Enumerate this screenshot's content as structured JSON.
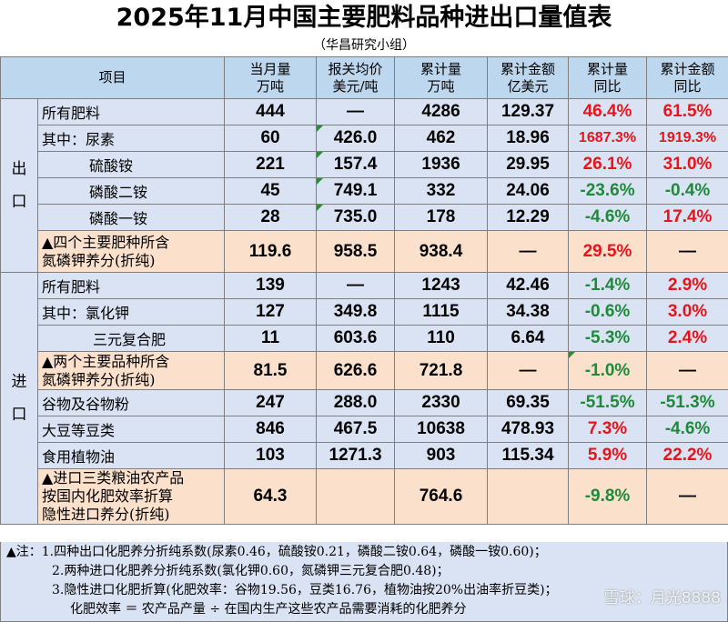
{
  "title": "2025年11月中国主要肥料品种进出口量值表",
  "subtitle": "（华昌研究小组）",
  "headers": {
    "item": "项目",
    "month_qty": [
      "当月量",
      "万吨"
    ],
    "price": [
      "报关均价",
      "美元/吨"
    ],
    "cum_qty": [
      "累计量",
      "万吨"
    ],
    "cum_amt": [
      "累计金额",
      "亿美元"
    ],
    "qty_yoy": [
      "累计量",
      "同比"
    ],
    "amt_yoy": [
      "累计金额",
      "同比"
    ]
  },
  "export": {
    "side": "出口",
    "rows": [
      {
        "label": "所有肥料",
        "month": "444",
        "price": "—",
        "cum": "4286",
        "amt": "129.37",
        "qyoy": "46.4%",
        "ayoy": "61.5%"
      },
      {
        "label": "其中：尿素",
        "month": "60",
        "price": "426.0",
        "cum": "462",
        "amt": "18.96",
        "qyoy": "1687.3%",
        "ayoy": "1919.3%"
      },
      {
        "label": "硫酸铵",
        "month": "221",
        "price": "157.4",
        "cum": "1936",
        "amt": "29.95",
        "qyoy": "26.1%",
        "ayoy": "31.0%"
      },
      {
        "label": "磷酸二铵",
        "month": "45",
        "price": "749.1",
        "cum": "332",
        "amt": "24.06",
        "qyoy": "-23.6%",
        "ayoy": "-0.4%"
      },
      {
        "label": "磷酸一铵",
        "month": "28",
        "price": "735.0",
        "cum": "178",
        "amt": "12.29",
        "qyoy": "-4.6%",
        "ayoy": "17.4%"
      }
    ],
    "summary": {
      "label1": "▲四个主要肥种所含",
      "label2": "氮磷钾养分(折纯)",
      "month": "119.6",
      "price": "958.5",
      "cum": "938.4",
      "amt": "—",
      "qyoy": "29.5%",
      "ayoy": "—"
    }
  },
  "import": {
    "side": "进口",
    "rows": [
      {
        "label": "所有肥料",
        "month": "139",
        "price": "—",
        "cum": "1243",
        "amt": "42.46",
        "qyoy": "-1.4%",
        "ayoy": "2.9%"
      },
      {
        "label": "其中：氯化钾",
        "month": "127",
        "price": "349.8",
        "cum": "1115",
        "amt": "34.38",
        "qyoy": "-0.6%",
        "ayoy": "3.0%"
      },
      {
        "label": "三元复合肥",
        "month": "11",
        "price": "603.6",
        "cum": "110",
        "amt": "6.64",
        "qyoy": "-5.3%",
        "ayoy": "2.4%"
      }
    ],
    "summary": {
      "label1": "▲两个主要品种所含",
      "label2": "氮磷钾养分(折纯)",
      "month": "81.5",
      "price": "626.6",
      "cum": "721.8",
      "amt": "—",
      "qyoy": "-1.0%",
      "ayoy": "—"
    },
    "rows2": [
      {
        "label": "谷物及谷物粉",
        "month": "247",
        "price": "288.0",
        "cum": "2330",
        "amt": "69.35",
        "qyoy": "-51.5%",
        "ayoy": "-51.3%"
      },
      {
        "label": "大豆等豆类",
        "month": "846",
        "price": "467.5",
        "cum": "10638",
        "amt": "478.93",
        "qyoy": "7.3%",
        "ayoy": "-4.6%"
      },
      {
        "label": "食用植物油",
        "month": "103",
        "price": "1271.3",
        "cum": "903",
        "amt": "115.34",
        "qyoy": "5.9%",
        "ayoy": "22.2%"
      }
    ],
    "summary2": {
      "label1": "▲进口三类粮油农产品",
      "label2": "按国内化肥效率折算",
      "label3": "隐性进口养分(折纯)",
      "month": "64.3",
      "price": "",
      "cum": "764.6",
      "amt": "",
      "qyoy": "-9.8%",
      "ayoy": "—"
    }
  },
  "notes": [
    "▲注：1.四种出口化肥养分折纯系数(尿素0.46，硫酸铵0.21，磷酸二铵0.64，磷酸一铵0.60)；",
    "2.两种进口化肥养分折纯系数(氯化钾0.60，氮磷钾三元复合肥0.48)；",
    "3.隐性进口化肥折算(化肥效率：谷物19.56，豆类16.76，植物油按20%出油率折豆类)；",
    "化肥效率 ＝ 农产品产量 ÷ 在国内生产这些农产品需要消耗的化肥养分"
  ],
  "watermark": "雪球：月光8888"
}
